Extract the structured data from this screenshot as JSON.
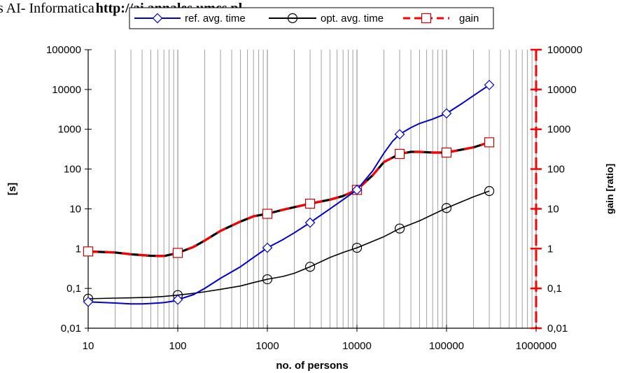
{
  "header": {
    "prefix": "s AI- Informatica",
    "url": "http://ai.annales.umcs.pl"
  },
  "chart_data": {
    "type": "line",
    "xlabel": "no. of persons",
    "ylabel": "[s]",
    "y2label": "gain [ratio]",
    "xscale": "log",
    "yscale": "log",
    "xlim": [
      10,
      1000000
    ],
    "ylim": [
      0.01,
      100000
    ],
    "y2lim": [
      0.01,
      100000
    ],
    "x_tick_labels": [
      "10",
      "100",
      "1000",
      "10000",
      "100000",
      "1000000"
    ],
    "y_tick_labels": [
      "0,01",
      "0,1",
      "1",
      "10",
      "100",
      "1000",
      "10000",
      "100000"
    ],
    "y2_tick_labels": [
      "0,01",
      "0,1",
      "1",
      "10",
      "100",
      "1000",
      "10000",
      "100000"
    ],
    "grid": "vertical minor and major lines",
    "legend_position": "top",
    "series": [
      {
        "name": "ref. avg. time",
        "color": "#0000cc",
        "dash": "solid",
        "marker": "diamond",
        "x": [
          10,
          100,
          1000,
          3000,
          10000,
          30000,
          100000,
          300000
        ],
        "y": [
          0.046,
          0.052,
          1.05,
          4.5,
          30,
          750,
          2500,
          13000
        ],
        "curve_x": [
          10,
          20,
          30,
          40,
          50,
          60,
          70,
          80,
          90,
          100,
          150,
          200,
          300,
          500,
          700,
          1000,
          1500,
          2000,
          3000,
          5000,
          7000,
          10000,
          15000,
          20000,
          25000,
          30000,
          40000,
          50000,
          70000,
          100000,
          150000,
          200000,
          300000
        ],
        "curve_y": [
          0.046,
          0.043,
          0.041,
          0.041,
          0.042,
          0.043,
          0.044,
          0.046,
          0.048,
          0.052,
          0.07,
          0.1,
          0.18,
          0.35,
          0.6,
          1.05,
          1.7,
          2.5,
          4.5,
          10,
          17,
          30,
          90,
          250,
          500,
          750,
          1100,
          1400,
          1800,
          2500,
          4500,
          7000,
          13000
        ]
      },
      {
        "name": "opt. avg. time",
        "color": "#000000",
        "dash": "solid",
        "marker": "circle",
        "x": [
          10,
          100,
          1000,
          3000,
          10000,
          30000,
          100000,
          300000
        ],
        "y": [
          0.055,
          0.068,
          0.17,
          0.35,
          1.05,
          3.2,
          10.5,
          28
        ],
        "curve_x": [
          10,
          20,
          30,
          50,
          70,
          100,
          150,
          200,
          300,
          500,
          700,
          1000,
          1500,
          2000,
          3000,
          5000,
          7000,
          10000,
          20000,
          30000,
          50000,
          100000,
          200000,
          300000
        ],
        "curve_y": [
          0.055,
          0.057,
          0.058,
          0.06,
          0.063,
          0.068,
          0.075,
          0.082,
          0.095,
          0.115,
          0.14,
          0.17,
          0.2,
          0.24,
          0.35,
          0.6,
          0.8,
          1.05,
          2.0,
          3.2,
          5.0,
          10.5,
          20,
          28
        ]
      },
      {
        "name": "gain",
        "color": "#ff0000",
        "dash": "dashed",
        "marker": "square",
        "axis": "right",
        "x": [
          10,
          100,
          1000,
          3000,
          10000,
          30000,
          100000,
          300000
        ],
        "y": [
          0.85,
          0.78,
          7.5,
          13.5,
          30,
          240,
          260,
          470
        ],
        "curve_x": [
          10,
          20,
          30,
          50,
          70,
          100,
          150,
          200,
          300,
          500,
          700,
          1000,
          1500,
          2000,
          3000,
          5000,
          7000,
          10000,
          15000,
          20000,
          30000,
          40000,
          50000,
          70000,
          100000,
          200000,
          300000
        ],
        "curve_y": [
          0.85,
          0.8,
          0.72,
          0.66,
          0.65,
          0.78,
          1.1,
          1.6,
          2.8,
          4.8,
          6.5,
          7.5,
          9.5,
          11,
          13.5,
          17,
          21,
          30,
          70,
          150,
          240,
          270,
          270,
          260,
          260,
          350,
          470
        ]
      }
    ]
  }
}
